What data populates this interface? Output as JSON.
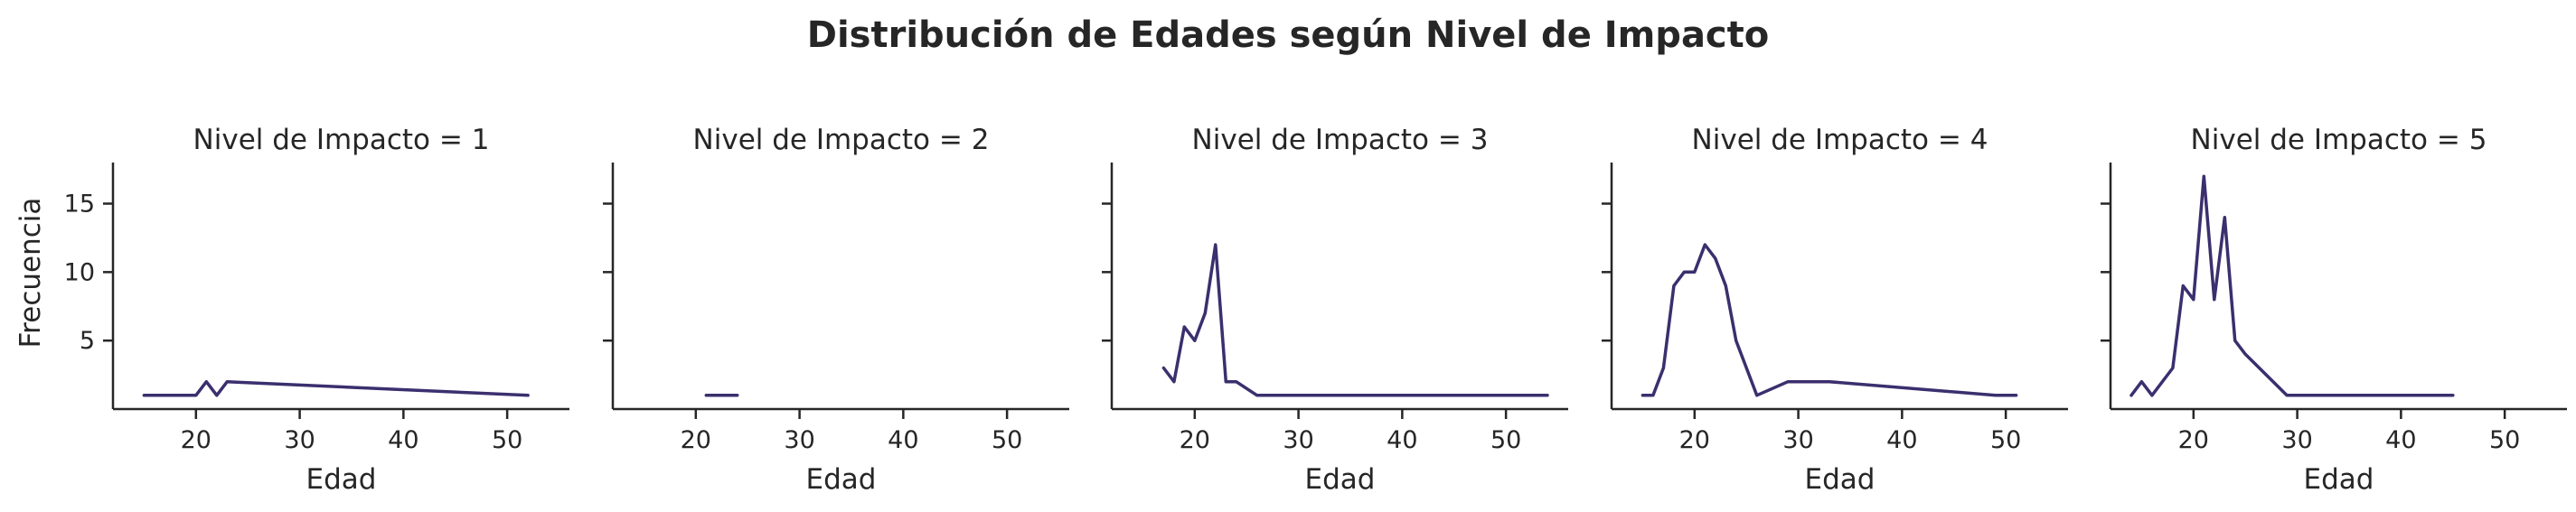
{
  "title": "Distribución de Edades según Nivel de Impacto",
  "colors": {
    "line": "#3b2f6e",
    "axis": "#262626"
  },
  "chart_data": {
    "type": "line",
    "xlabel": "Edad",
    "ylabel": "Frecuencia",
    "xlim": [
      12,
      56
    ],
    "ylim": [
      0,
      18
    ],
    "xticks": [
      20,
      30,
      40,
      50
    ],
    "yticks": [
      5,
      10,
      15
    ],
    "grid": false,
    "panels": [
      {
        "title": "Nivel de Impacto = 1",
        "x": [
          15,
          16,
          17,
          18,
          19,
          20,
          21,
          22,
          23,
          52
        ],
        "y": [
          1,
          1,
          1,
          1,
          1,
          1,
          2,
          1,
          2,
          1
        ]
      },
      {
        "title": "Nivel de Impacto = 2",
        "x": [
          21,
          22,
          23,
          24
        ],
        "y": [
          1,
          1,
          1,
          1
        ]
      },
      {
        "title": "Nivel de Impacto = 3",
        "x": [
          17,
          18,
          19,
          20,
          21,
          22,
          23,
          24,
          26,
          54
        ],
        "y": [
          3,
          2,
          6,
          5,
          7,
          12,
          2,
          2,
          1,
          1
        ]
      },
      {
        "title": "Nivel de Impacto = 4",
        "x": [
          15,
          16,
          17,
          18,
          19,
          20,
          21,
          22,
          23,
          24,
          26,
          29,
          33,
          49,
          51
        ],
        "y": [
          1,
          1,
          3,
          9,
          10,
          10,
          12,
          11,
          9,
          5,
          1,
          2,
          2,
          1,
          1
        ]
      },
      {
        "title": "Nivel de Impacto = 5",
        "x": [
          14,
          15,
          16,
          18,
          19,
          20,
          21,
          22,
          23,
          24,
          25,
          29,
          45
        ],
        "y": [
          1,
          2,
          1,
          3,
          9,
          8,
          17,
          8,
          14,
          5,
          4,
          1,
          1
        ]
      }
    ]
  }
}
